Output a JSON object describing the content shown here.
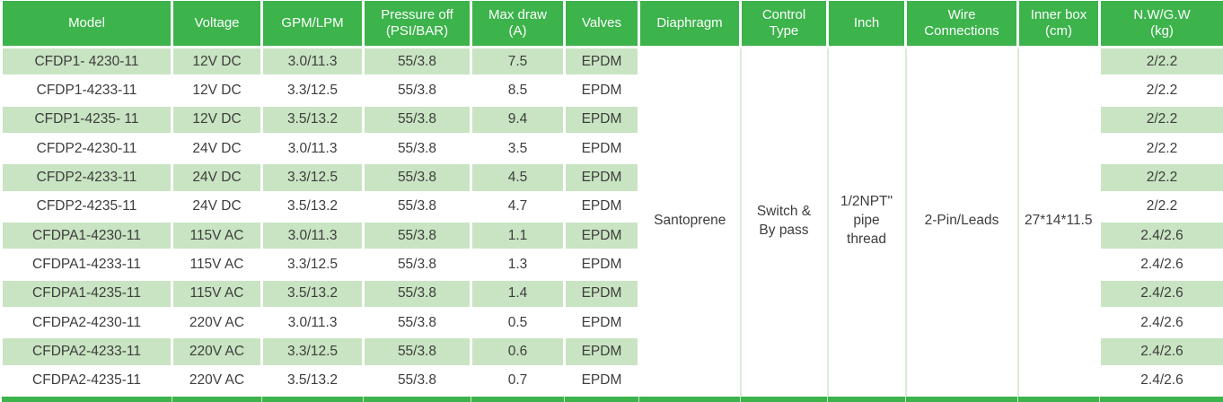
{
  "colors": {
    "header_green": "#3cb34b",
    "stripe_green": "#c9e4c2",
    "merged_separator_green": "#daecd5",
    "footer_bar_separator_green": "#cfe9cb",
    "body_text": "#3d3d3d",
    "header_text": "#ffffff"
  },
  "table": {
    "columns": [
      {
        "key": "model",
        "label": "Model"
      },
      {
        "key": "voltage",
        "label": "Voltage"
      },
      {
        "key": "gpm_lpm",
        "label": "GPM/LPM"
      },
      {
        "key": "pressure_off",
        "label": "Pressure off\n(PSI/BAR)"
      },
      {
        "key": "max_draw",
        "label": "Max draw\n(A)"
      },
      {
        "key": "valves",
        "label": "Valves"
      },
      {
        "key": "diaphragm",
        "label": "Diaphragm"
      },
      {
        "key": "control_type",
        "label": "Control\nType"
      },
      {
        "key": "inch",
        "label": "Inch"
      },
      {
        "key": "wire_connections",
        "label": "Wire\nConnections"
      },
      {
        "key": "inner_box",
        "label": "Inner box\n(cm)"
      },
      {
        "key": "nw_gw",
        "label": "N.W/G.W\n(kg)"
      }
    ],
    "stripe_column_keys": [
      "model",
      "voltage",
      "gpm_lpm",
      "pressure_off",
      "max_draw",
      "valves"
    ],
    "merged_column_keys": [
      "diaphragm",
      "control_type",
      "inch",
      "wire_connections",
      "inner_box"
    ],
    "merged_values": {
      "diaphragm": "Santoprene",
      "control_type": "Switch &\nBy pass",
      "inch": "1/2NPT\"\npipe\nthread",
      "wire_connections": "2-Pin/Leads",
      "inner_box": "27*14*11.5"
    },
    "rows": [
      {
        "model": "CFDP1- 4230-11",
        "voltage": "12V DC",
        "gpm_lpm": "3.0/11.3",
        "pressure_off": "55/3.8",
        "max_draw": "7.5",
        "valves": "EPDM",
        "nw_gw": "2/2.2"
      },
      {
        "model": "CFDP1-4233-11",
        "voltage": "12V DC",
        "gpm_lpm": "3.3/12.5",
        "pressure_off": "55/3.8",
        "max_draw": "8.5",
        "valves": "EPDM",
        "nw_gw": "2/2.2"
      },
      {
        "model": "CFDP1-4235- 11",
        "voltage": "12V DC",
        "gpm_lpm": "3.5/13.2",
        "pressure_off": "55/3.8",
        "max_draw": "9.4",
        "valves": "EPDM",
        "nw_gw": "2/2.2"
      },
      {
        "model": "CFDP2-4230-11",
        "voltage": "24V DC",
        "gpm_lpm": "3.0/11.3",
        "pressure_off": "55/3.8",
        "max_draw": "3.5",
        "valves": "EPDM",
        "nw_gw": "2/2.2"
      },
      {
        "model": "CFDP2-4233-11",
        "voltage": "24V DC",
        "gpm_lpm": "3.3/12.5",
        "pressure_off": "55/3.8",
        "max_draw": "4.5",
        "valves": "EPDM",
        "nw_gw": "2/2.2"
      },
      {
        "model": "CFDP2-4235-11",
        "voltage": "24V DC",
        "gpm_lpm": "3.5/13.2",
        "pressure_off": "55/3.8",
        "max_draw": "4.7",
        "valves": "EPDM",
        "nw_gw": "2/2.2"
      },
      {
        "model": "CFDPA1-4230-11",
        "voltage": "115V AC",
        "gpm_lpm": "3.0/11.3",
        "pressure_off": "55/3.8",
        "max_draw": "1.1",
        "valves": "EPDM",
        "nw_gw": "2.4/2.6"
      },
      {
        "model": "CFDPA1-4233-11",
        "voltage": "115V AC",
        "gpm_lpm": "3.3/12.5",
        "pressure_off": "55/3.8",
        "max_draw": "1.3",
        "valves": "EPDM",
        "nw_gw": "2.4/2.6"
      },
      {
        "model": "CFDPA1-4235-11",
        "voltage": "115V AC",
        "gpm_lpm": "3.5/13.2",
        "pressure_off": "55/3.8",
        "max_draw": "1.4",
        "valves": "EPDM",
        "nw_gw": "2.4/2.6"
      },
      {
        "model": "CFDPA2-4230-11",
        "voltage": "220V AC",
        "gpm_lpm": "3.0/11.3",
        "pressure_off": "55/3.8",
        "max_draw": "0.5",
        "valves": "EPDM",
        "nw_gw": "2.4/2.6"
      },
      {
        "model": "CFDPA2-4233-11",
        "voltage": "220V AC",
        "gpm_lpm": "3.3/12.5",
        "pressure_off": "55/3.8",
        "max_draw": "0.6",
        "valves": "EPDM",
        "nw_gw": "2.4/2.6"
      },
      {
        "model": "CFDPA2-4235-11",
        "voltage": "220V AC",
        "gpm_lpm": "3.5/13.2",
        "pressure_off": "55/3.8",
        "max_draw": "0.7",
        "valves": "EPDM",
        "nw_gw": "2.4/2.6"
      }
    ]
  }
}
